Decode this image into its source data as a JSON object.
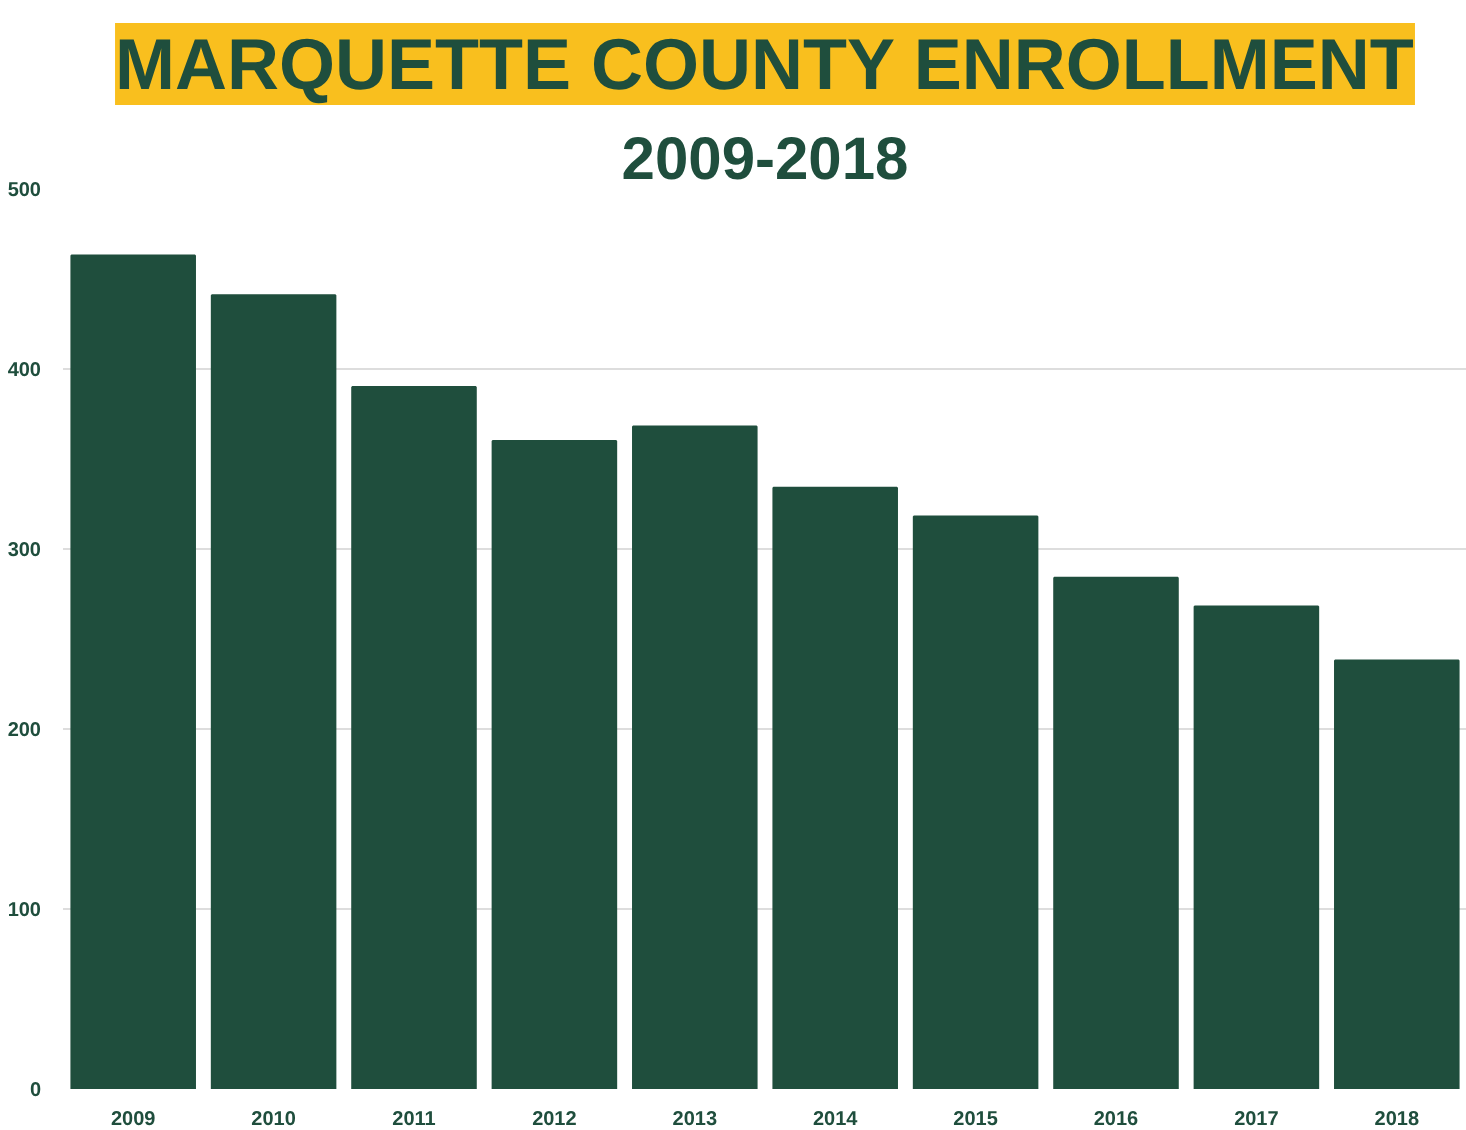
{
  "chart_data": {
    "type": "bar",
    "title": "MARQUETTE COUNTY ENROLLMENT",
    "subtitle": "2009-2018",
    "categories": [
      "2009",
      "2010",
      "2011",
      "2012",
      "2013",
      "2014",
      "2015",
      "2016",
      "2017",
      "2018"
    ],
    "values": [
      463,
      441,
      390,
      360,
      368,
      334,
      318,
      284,
      268,
      238
    ],
    "color": "#1f4e3d",
    "ylim": [
      0,
      500
    ],
    "yticks": [
      0,
      100,
      200,
      300,
      400,
      500
    ],
    "grid": "y"
  }
}
